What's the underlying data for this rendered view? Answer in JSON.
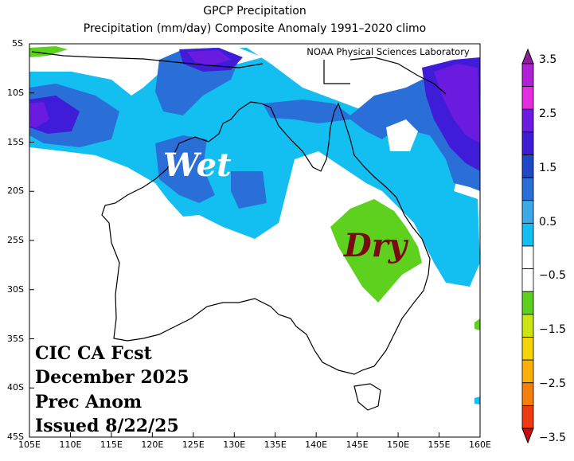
{
  "title": "GPCP Precipitation",
  "subtitle": "Precipitation (mm/day) Composite Anomaly 1991–2020 climo",
  "credit": "NOAA Physical Sciences Laboratory",
  "annotations": {
    "wet": "Wet",
    "dry": "Dry"
  },
  "forecast_text": [
    "CIC CA Fcst",
    "December 2025",
    "Prec Anom",
    "Issued 8/22/25"
  ],
  "lat_labels": [
    "5S",
    "10S",
    "15S",
    "20S",
    "25S",
    "30S",
    "35S",
    "40S",
    "45S"
  ],
  "lon_labels": [
    "105E",
    "110E",
    "115E",
    "120E",
    "125E",
    "130E",
    "135E",
    "140E",
    "145E",
    "150E",
    "155E",
    "160E"
  ],
  "colorbar": {
    "labels": [
      "3.5",
      "2.5",
      "1.5",
      "0.5",
      "−0.5",
      "−1.5",
      "−2.5",
      "−3.5"
    ],
    "colors": [
      "#8e1f9a",
      "#b11fd6",
      "#e52ce0",
      "#6b1be0",
      "#3e1cd8",
      "#2147c9",
      "#2a6ed8",
      "#3fa8e6",
      "#13bff0",
      "#ffffff",
      "#ffffff",
      "#5ed11e",
      "#c9e612",
      "#f5d50a",
      "#f9b10a",
      "#f47f0a",
      "#ee3a10",
      "#cc0a10"
    ]
  },
  "colors": {
    "ocean": "#ffffff",
    "coast": "#000000"
  }
}
